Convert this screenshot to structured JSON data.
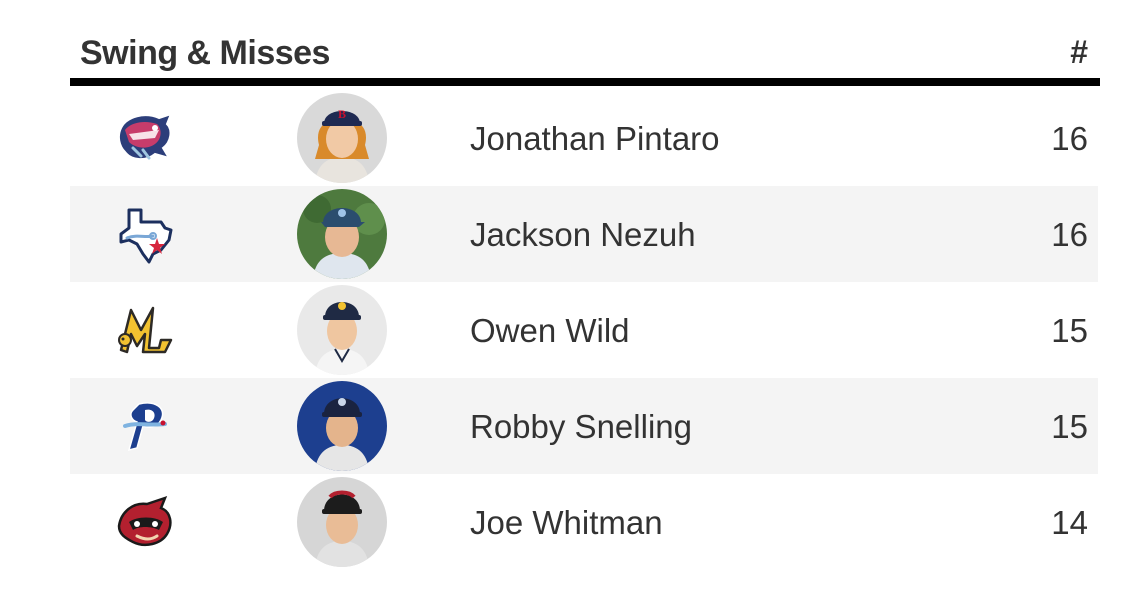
{
  "header": {
    "title": "Swing & Misses",
    "count_label": "#"
  },
  "rows": [
    {
      "name": "Jonathan Pintaro",
      "count": "16",
      "team_logo": "sea-dragon-logo-icon",
      "avatar_bg": "#d9d9d9",
      "cap_color": "#1f2a52",
      "hair_color": "#d98a2b",
      "jersey_color": "#e8e4de"
    },
    {
      "name": "Jackson Nezuh",
      "count": "16",
      "team_logo": "texas-star-logo-icon",
      "avatar_bg": "#4e7a3e",
      "cap_color": "#2b4d6e",
      "hair_color": "#5a3b22",
      "jersey_color": "#dfe6ee"
    },
    {
      "name": "Owen Wild",
      "count": "15",
      "team_logo": "script-m-logo-icon",
      "avatar_bg": "#e9e9e9",
      "cap_color": "#1f2a44",
      "hair_color": "#7a5432",
      "jersey_color": "#f5f5f5"
    },
    {
      "name": "Robby Snelling",
      "count": "15",
      "team_logo": "script-p-logo-icon",
      "avatar_bg": "#1d3f8f",
      "cap_color": "#1a2340",
      "hair_color": "#3d2a1a",
      "jersey_color": "#e6e6e6"
    },
    {
      "name": "Joe Whitman",
      "count": "14",
      "team_logo": "flying-squirrel-logo-icon",
      "avatar_bg": "#d6d6d6",
      "cap_color": "#1c1c1c",
      "hair_color": "#3d2a1a",
      "jersey_color": "#e2e2e2"
    }
  ]
}
